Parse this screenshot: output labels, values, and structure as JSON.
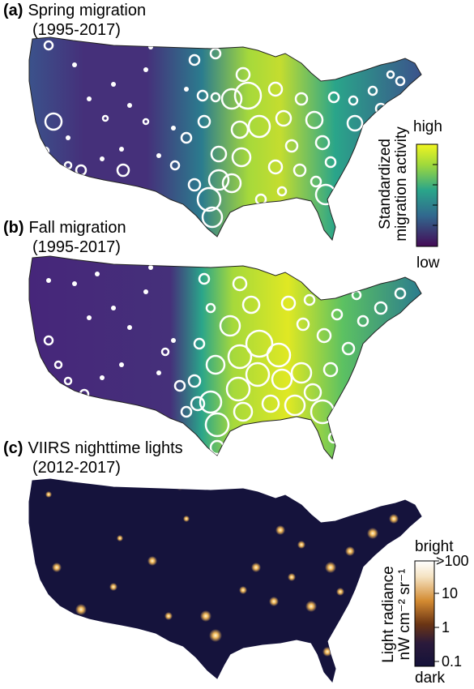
{
  "panels": [
    {
      "letter": "(a)",
      "title": "Spring migration",
      "period": "(1995-2017)"
    },
    {
      "letter": "(b)",
      "title": "Fall migration",
      "period": "(1995-2017)"
    },
    {
      "letter": "(c)",
      "title": "VIIRS nighttime lights",
      "period": "(2012-2017)"
    }
  ],
  "migration_legend": {
    "high": "high",
    "low": "low",
    "title_line1": "Standardized",
    "title_line2": "migration activity",
    "colors": [
      "#e8f01f",
      "#7dcf4e",
      "#2aa58a",
      "#2b7c8e",
      "#3b528b",
      "#45307a",
      "#440a56"
    ]
  },
  "light_legend": {
    "bright": "bright",
    "dark": "dark",
    "title_line1": "Light radiance",
    "title_line2": "nW cm⁻² sr⁻¹",
    "ticks": [
      ">100",
      "10",
      "1",
      "0.1"
    ],
    "colors": [
      "#ffffff",
      "#f3d9a8",
      "#d0862a",
      "#7d3f12",
      "#2c1b3a",
      "#1a1740",
      "#14123a"
    ]
  }
}
